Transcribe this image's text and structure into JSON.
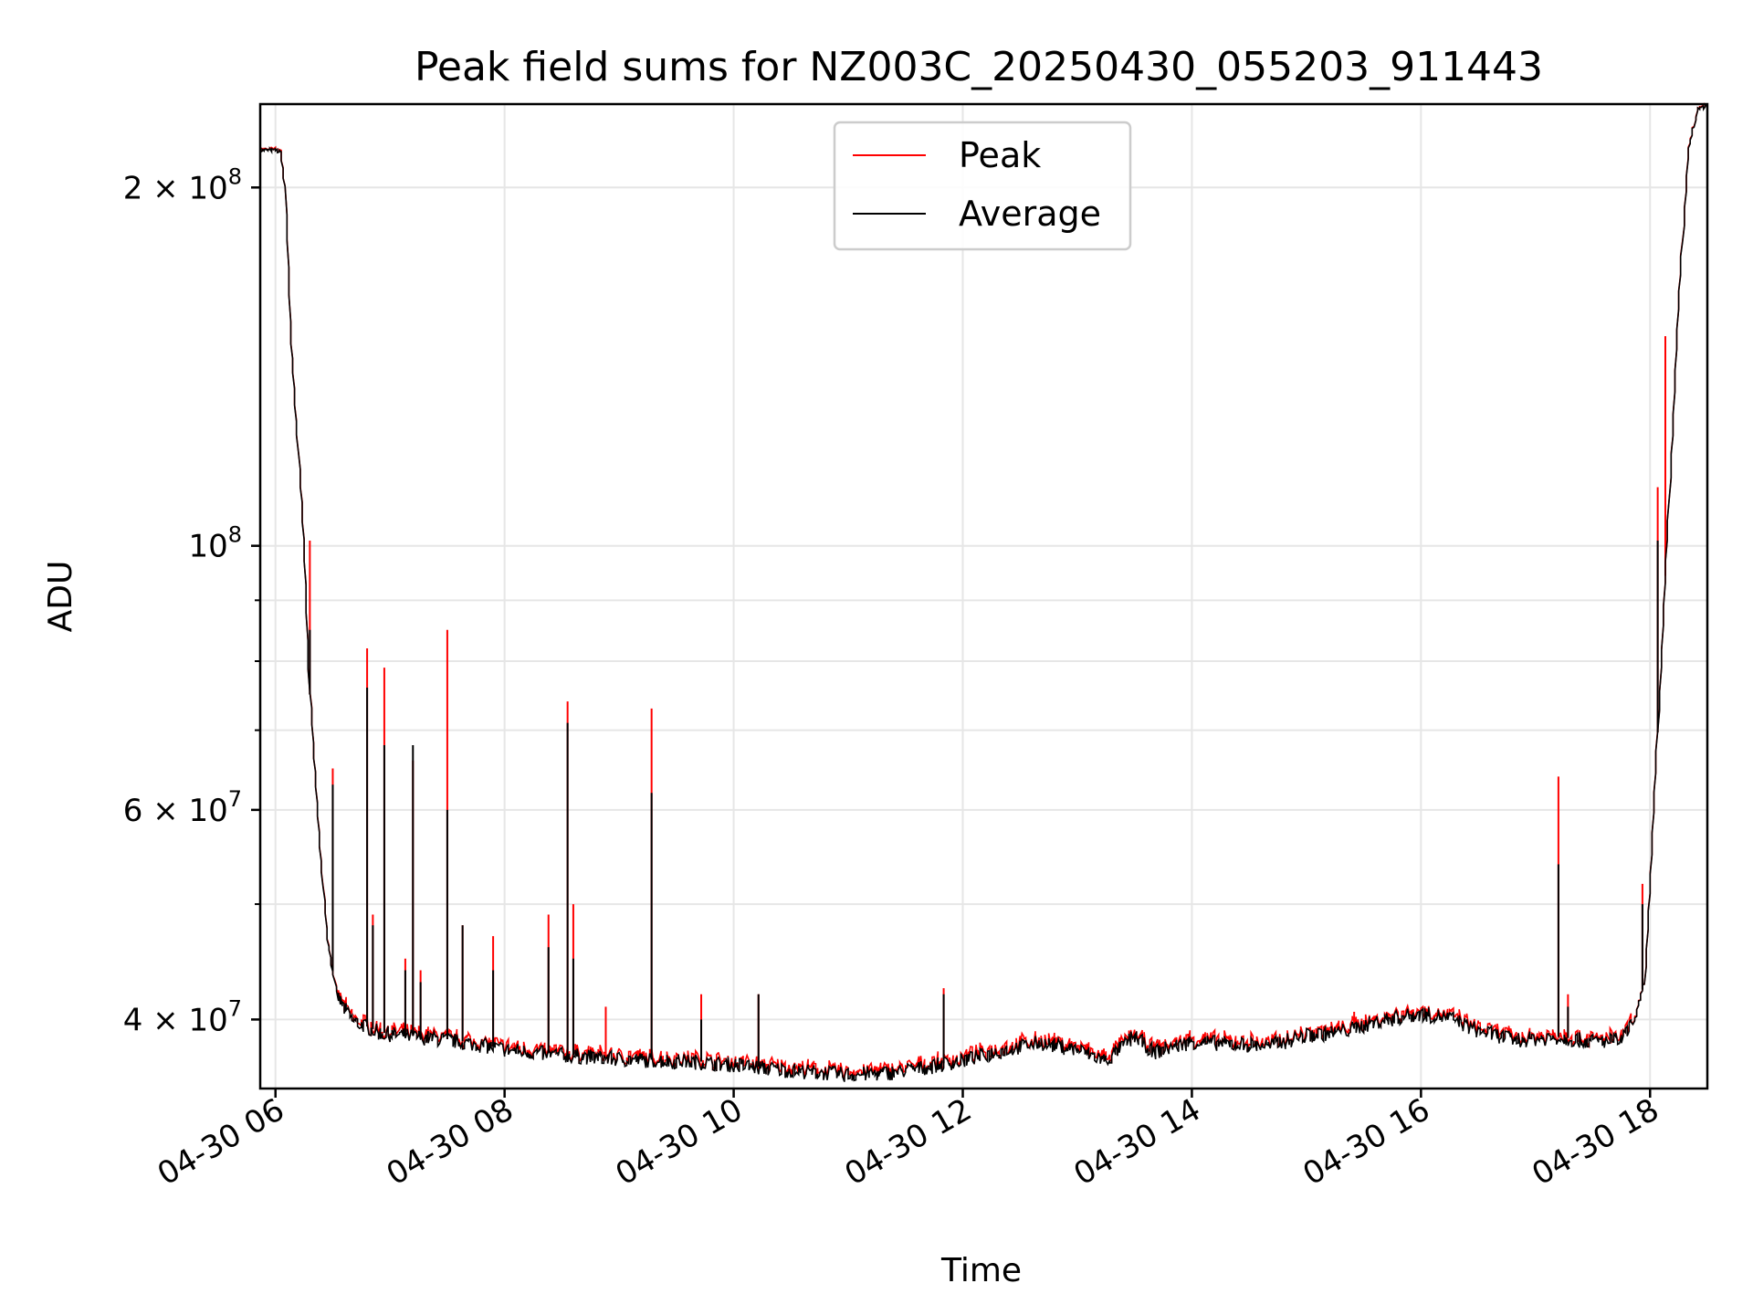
{
  "chart_data": {
    "type": "line",
    "title": "Peak field sums for NZ003C_20250430_055203_911443",
    "xlabel": "Time",
    "ylabel": "ADU",
    "y_scale": "log",
    "xlim": [
      "04-30 05:52",
      "04-30 18:30"
    ],
    "ylim": [
      35000000,
      235000000
    ],
    "x_ticks": [
      {
        "t": "04-30 06:00",
        "label": "04-30 06"
      },
      {
        "t": "04-30 08:00",
        "label": "04-30 08"
      },
      {
        "t": "04-30 10:00",
        "label": "04-30 10"
      },
      {
        "t": "04-30 12:00",
        "label": "04-30 12"
      },
      {
        "t": "04-30 14:00",
        "label": "04-30 14"
      },
      {
        "t": "04-30 16:00",
        "label": "04-30 16"
      },
      {
        "t": "04-30 18:00",
        "label": "04-30 18"
      }
    ],
    "y_ticks_major": [
      {
        "value": 40000000,
        "base": "4 × 10",
        "exp": "7"
      },
      {
        "value": 60000000,
        "base": "6 × 10",
        "exp": "7"
      },
      {
        "value": 100000000,
        "base": "10",
        "exp": "8"
      },
      {
        "value": 200000000,
        "base": "2 × 10",
        "exp": "8"
      }
    ],
    "y_ticks_minor": [
      50000000,
      70000000,
      80000000,
      90000000
    ],
    "grid": true,
    "legend": {
      "placement": "top-center",
      "entries": [
        {
          "name": "Peak",
          "color": "#ff0000"
        },
        {
          "name": "Average",
          "color": "#000000"
        }
      ]
    },
    "series": [
      {
        "name": "Average",
        "color": "#000000",
        "points": [
          [
            "05:52",
            215000000
          ],
          [
            "06:00",
            215000000
          ],
          [
            "06:03",
            214000000
          ],
          [
            "06:05",
            200000000
          ],
          [
            "06:08",
            150000000
          ],
          [
            "06:12",
            120000000
          ],
          [
            "06:15",
            100000000
          ],
          [
            "06:18",
            75000000
          ],
          [
            "06:22",
            60000000
          ],
          [
            "06:27",
            47000000
          ],
          [
            "06:32",
            42000000
          ],
          [
            "06:40",
            40000000
          ],
          [
            "06:55",
            39000000
          ],
          [
            "07:10",
            38800000
          ],
          [
            "07:30",
            38500000
          ],
          [
            "07:45",
            38200000
          ],
          [
            "08:00",
            37800000
          ],
          [
            "08:20",
            37500000
          ],
          [
            "08:40",
            37300000
          ],
          [
            "09:00",
            37100000
          ],
          [
            "09:20",
            37000000
          ],
          [
            "09:40",
            36900000
          ],
          [
            "10:00",
            36700000
          ],
          [
            "10:20",
            36400000
          ],
          [
            "10:40",
            36200000
          ],
          [
            "11:00",
            36000000
          ],
          [
            "11:20",
            36100000
          ],
          [
            "11:40",
            36500000
          ],
          [
            "12:00",
            37000000
          ],
          [
            "12:20",
            37700000
          ],
          [
            "12:40",
            38300000
          ],
          [
            "13:00",
            37800000
          ],
          [
            "13:15",
            37000000
          ],
          [
            "13:30",
            38800000
          ],
          [
            "13:40",
            37600000
          ],
          [
            "14:00",
            38400000
          ],
          [
            "14:20",
            38200000
          ],
          [
            "14:40",
            38100000
          ],
          [
            "15:00",
            38800000
          ],
          [
            "15:20",
            39200000
          ],
          [
            "15:40",
            40000000
          ],
          [
            "16:00",
            40500000
          ],
          [
            "16:15",
            40200000
          ],
          [
            "16:30",
            39200000
          ],
          [
            "16:50",
            38500000
          ],
          [
            "17:10",
            38700000
          ],
          [
            "17:30",
            38400000
          ],
          [
            "17:45",
            38500000
          ],
          [
            "17:52",
            40000000
          ],
          [
            "17:57",
            43000000
          ],
          [
            "18:00",
            52000000
          ],
          [
            "18:05",
            75000000
          ],
          [
            "18:10",
            110000000
          ],
          [
            "18:15",
            160000000
          ],
          [
            "18:20",
            215000000
          ],
          [
            "18:25",
            233000000
          ],
          [
            "18:30",
            234000000
          ]
        ],
        "spikes": [
          [
            "06:18",
            85000000
          ],
          [
            "06:30",
            63000000
          ],
          [
            "06:48",
            76000000
          ],
          [
            "06:51",
            48000000
          ],
          [
            "06:57",
            68000000
          ],
          [
            "07:08",
            44000000
          ],
          [
            "07:12",
            68000000
          ],
          [
            "07:16",
            43000000
          ],
          [
            "07:30",
            60000000
          ],
          [
            "07:38",
            48000000
          ],
          [
            "07:54",
            44000000
          ],
          [
            "08:23",
            46000000
          ],
          [
            "08:33",
            71000000
          ],
          [
            "08:36",
            45000000
          ],
          [
            "09:17",
            62000000
          ],
          [
            "09:43",
            40000000
          ],
          [
            "10:13",
            42000000
          ],
          [
            "11:50",
            42000000
          ],
          [
            "17:12",
            54000000
          ],
          [
            "17:17",
            41000000
          ],
          [
            "17:56",
            50000000
          ],
          [
            "18:04",
            101000000
          ]
        ]
      },
      {
        "name": "Peak",
        "color": "#ff0000",
        "spikes": [
          [
            "06:18",
            101000000
          ],
          [
            "06:30",
            65000000
          ],
          [
            "06:48",
            82000000
          ],
          [
            "06:51",
            49000000
          ],
          [
            "06:57",
            79000000
          ],
          [
            "07:08",
            45000000
          ],
          [
            "07:12",
            66000000
          ],
          [
            "07:16",
            44000000
          ],
          [
            "07:30",
            85000000
          ],
          [
            "07:38",
            48000000
          ],
          [
            "07:54",
            47000000
          ],
          [
            "08:23",
            49000000
          ],
          [
            "08:33",
            74000000
          ],
          [
            "08:36",
            50000000
          ],
          [
            "08:53",
            41000000
          ],
          [
            "09:17",
            73000000
          ],
          [
            "09:43",
            42000000
          ],
          [
            "10:13",
            42000000
          ],
          [
            "11:50",
            42500000
          ],
          [
            "15:25",
            40600000
          ],
          [
            "17:12",
            64000000
          ],
          [
            "17:17",
            42000000
          ],
          [
            "17:56",
            52000000
          ],
          [
            "18:04",
            112000000
          ],
          [
            "18:08",
            150000000
          ]
        ]
      }
    ]
  }
}
